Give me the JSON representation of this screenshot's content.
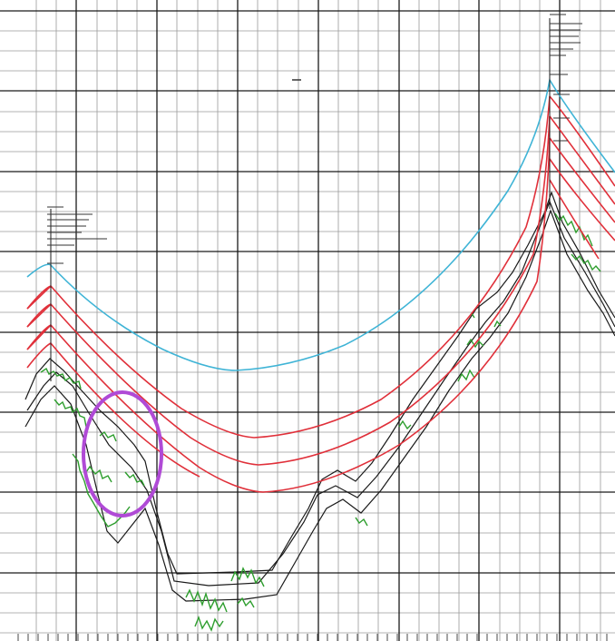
{
  "drawing": {
    "colors": {
      "background": "#ffffff",
      "grid_major": "#1a1a1a",
      "grid_minor": "#9a9a9a",
      "top_cable": "#3fb4d6",
      "lower_cables": "#e0303a",
      "terrain": "#1a1a1a",
      "vegetation": "#2e9e2e",
      "highlight_circle": "#b04ad6"
    },
    "annotations": {
      "left_block_label": "",
      "right_block_label": "",
      "center_mark": ""
    }
  }
}
